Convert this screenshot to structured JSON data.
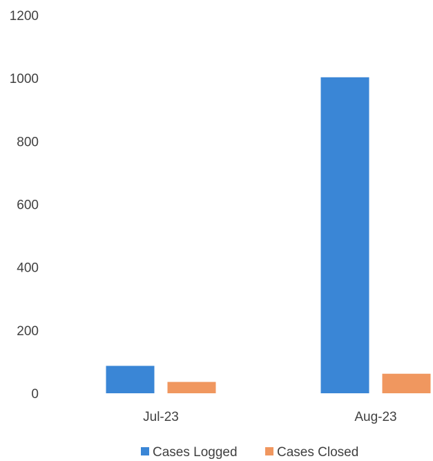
{
  "chart_data": {
    "type": "bar",
    "title": "",
    "xlabel": "",
    "ylabel": "",
    "categories": [
      "Jul-23",
      "Aug-23"
    ],
    "series": [
      {
        "name": "Cases Logged",
        "values": [
          87,
          1003
        ],
        "color": "#3A86D6"
      },
      {
        "name": "Cases Closed",
        "values": [
          36,
          62
        ],
        "color": "#F0975F"
      }
    ],
    "ylim": [
      0,
      1200
    ],
    "yticks": [
      "0",
      "200",
      "400",
      "600",
      "800",
      "1000",
      "1200"
    ],
    "grid": false,
    "legend_position": "bottom"
  }
}
